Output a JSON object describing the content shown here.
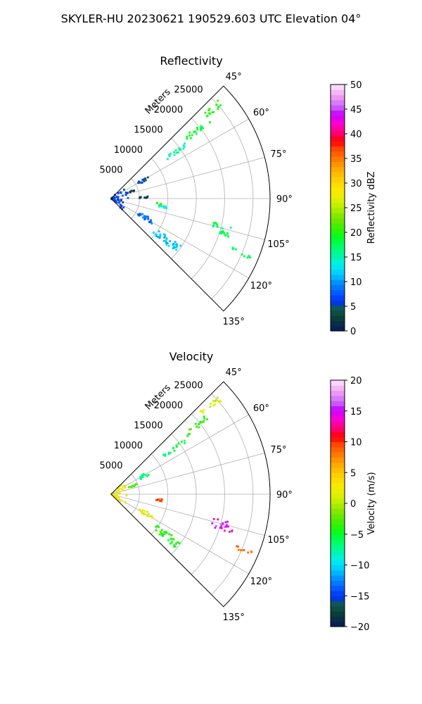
{
  "figure": {
    "suptitle": "SKYLER-HU  20230621  190529.603 UTC Elevation 04°"
  },
  "chart_data": [
    {
      "type": "scatter",
      "projection": "polar-sector",
      "title": "Reflectivity",
      "radial_label": "Meters",
      "theta_range_deg": [
        45,
        135
      ],
      "r_max": 28000,
      "r_ticks": [
        5000,
        10000,
        15000,
        20000,
        25000
      ],
      "r_tick_labels": [
        "5000",
        "10000",
        "15000",
        "20000",
        "25000"
      ],
      "theta_ticks": [
        45,
        60,
        75,
        90,
        105,
        120,
        135
      ],
      "theta_tick_labels": [
        "45°",
        "60°",
        "75°",
        "90°",
        "105°",
        "120°",
        "135°"
      ],
      "grid": true,
      "colorbar": {
        "label": "Reflectivity dBZ",
        "range": [
          0,
          50
        ],
        "ticks": [
          0,
          5,
          10,
          15,
          20,
          25,
          30,
          35,
          40,
          45,
          50
        ],
        "tick_labels": [
          "0",
          "5",
          "10",
          "15",
          "20",
          "25",
          "30",
          "35",
          "40",
          "45",
          "50"
        ]
      },
      "echoes": [
        {
          "az": [
            47,
            50
          ],
          "r": [
            21500,
            26000
          ],
          "value": 20
        },
        {
          "az": [
            50,
            53
          ],
          "r": [
            16500,
            22000
          ],
          "value": 19
        },
        {
          "az": [
            53,
            56
          ],
          "r": [
            11500,
            16500
          ],
          "value": 15
        },
        {
          "az": [
            58,
            64
          ],
          "r": [
            5500,
            7500
          ],
          "value": 5
        },
        {
          "az": [
            68,
            72
          ],
          "r": [
            3000,
            5000
          ],
          "value": 3
        },
        {
          "az": [
            86,
            89
          ],
          "r": [
            5000,
            6500
          ],
          "value": 2
        },
        {
          "az": [
            95,
            98
          ],
          "r": [
            8000,
            9000
          ],
          "value": 21
        },
        {
          "az": [
            98,
            101
          ],
          "r": [
            8500,
            10000
          ],
          "value": 14
        },
        {
          "az": [
            103,
            108
          ],
          "r": [
            18500,
            22500
          ],
          "value": 17
        },
        {
          "az": [
            112,
            114
          ],
          "r": [
            22500,
            27000
          ],
          "value": 18
        },
        {
          "az": [
            116,
            122
          ],
          "r": [
            5500,
            8500
          ],
          "value": 8
        },
        {
          "az": [
            124,
            130
          ],
          "r": [
            9500,
            15000
          ],
          "value": 12
        },
        {
          "az": [
            45,
            135
          ],
          "r": [
            0,
            3000
          ],
          "value": 6
        }
      ]
    },
    {
      "type": "scatter",
      "projection": "polar-sector",
      "title": "Velocity",
      "radial_label": "Meters",
      "theta_range_deg": [
        45,
        135
      ],
      "r_max": 28000,
      "r_ticks": [
        5000,
        10000,
        15000,
        20000,
        25000
      ],
      "r_tick_labels": [
        "5000",
        "10000",
        "15000",
        "20000",
        "25000"
      ],
      "theta_ticks": [
        45,
        60,
        75,
        90,
        105,
        120,
        135
      ],
      "theta_tick_labels": [
        "45°",
        "60°",
        "75°",
        "90°",
        "105°",
        "120°",
        "135°"
      ],
      "grid": true,
      "colorbar": {
        "label": "Velocity (m/s)",
        "range": [
          -20,
          20
        ],
        "ticks": [
          -20,
          -15,
          -10,
          -5,
          0,
          5,
          10,
          15,
          20
        ],
        "tick_labels": [
          "−20",
          "−15",
          "−10",
          "−5",
          "0",
          "5",
          "10",
          "15",
          "20"
        ]
      },
      "echoes": [
        {
          "az": [
            47,
            50
          ],
          "r": [
            21500,
            26000
          ],
          "value": 1
        },
        {
          "az": [
            50,
            53
          ],
          "r": [
            16500,
            22000
          ],
          "value": -3
        },
        {
          "az": [
            53,
            56
          ],
          "r": [
            11500,
            16500
          ],
          "value": -6
        },
        {
          "az": [
            58,
            64
          ],
          "r": [
            5500,
            7500
          ],
          "value": -7
        },
        {
          "az": [
            68,
            72
          ],
          "r": [
            3000,
            5000
          ],
          "value": -2
        },
        {
          "az": [
            95,
            98
          ],
          "r": [
            8000,
            9000
          ],
          "value": 9
        },
        {
          "az": [
            103,
            108
          ],
          "r": [
            18500,
            22500
          ],
          "value": 15
        },
        {
          "az": [
            112,
            114
          ],
          "r": [
            22500,
            27000
          ],
          "value": 8
        },
        {
          "az": [
            116,
            122
          ],
          "r": [
            5500,
            8500
          ],
          "value": 2
        },
        {
          "az": [
            124,
            130
          ],
          "r": [
            9500,
            15000
          ],
          "value": -4
        },
        {
          "az": [
            45,
            135
          ],
          "r": [
            0,
            3000
          ],
          "value": 3
        }
      ]
    }
  ]
}
